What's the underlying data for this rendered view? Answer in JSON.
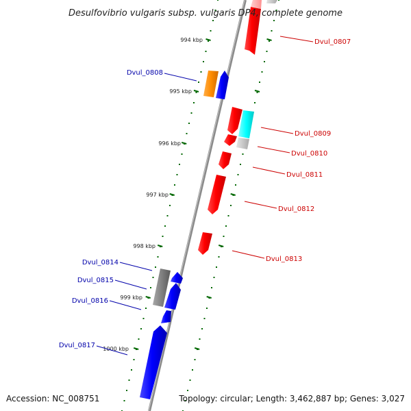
{
  "title": "Desulfovibrio vulgaris subsp. vulgaris DP4, complete genome",
  "footer": {
    "accession": "Accession: NC_008751",
    "summary": "Topology: circular; Length: 3,462,887 bp; Genes: 3,027"
  },
  "colors": {
    "forward_label": "#cc0000",
    "reverse_label": "#0000aa",
    "backbone": "#808080",
    "tick_major": "#006600",
    "red": "#ff0000",
    "blue": "#0000ff",
    "orange": "#ff8c00",
    "cyan": "#00ffff",
    "gray": "#808080",
    "light_gray": "#c8c8c8",
    "pink": "#ffb0b0"
  },
  "kbp_ticks": [
    "994 kbp",
    "995 kbp",
    "996 kbp",
    "997 kbp",
    "998 kbp",
    "999 kbp",
    "1000 kbp"
  ],
  "genes": [
    {
      "name": "Dvul_0807",
      "strand": "forward"
    },
    {
      "name": "Dvul_0808",
      "strand": "reverse"
    },
    {
      "name": "Dvul_0809",
      "strand": "forward"
    },
    {
      "name": "Dvul_0810",
      "strand": "forward"
    },
    {
      "name": "Dvul_0811",
      "strand": "forward"
    },
    {
      "name": "Dvul_0812",
      "strand": "forward"
    },
    {
      "name": "Dvul_0813",
      "strand": "forward"
    },
    {
      "name": "Dvul_0814",
      "strand": "reverse"
    },
    {
      "name": "Dvul_0815",
      "strand": "reverse"
    },
    {
      "name": "Dvul_0816",
      "strand": "reverse"
    },
    {
      "name": "Dvul_0817",
      "strand": "reverse"
    }
  ]
}
